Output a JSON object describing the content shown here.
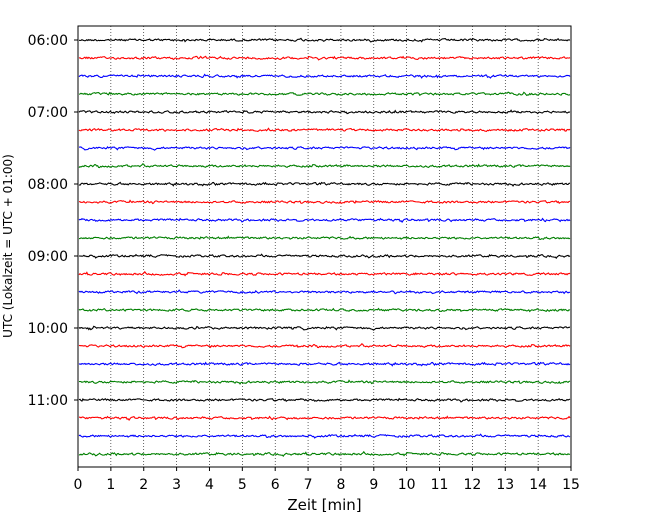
{
  "chart_data": {
    "type": "line",
    "title": "",
    "xlabel": "Zeit  [min]",
    "ylabel": "UTC (Lokalzeit = UTC + 01:00)",
    "xlim": [
      0,
      15
    ],
    "x_ticks": [
      "0",
      "1",
      "2",
      "3",
      "4",
      "5",
      "6",
      "7",
      "8",
      "9",
      "10",
      "11",
      "12",
      "13",
      "14",
      "15"
    ],
    "y_ticks": [
      "06:00",
      "07:00",
      "08:00",
      "09:00",
      "10:00",
      "11:00"
    ],
    "grid": "vertical dotted lines at each minute",
    "trace_interval_minutes": 15,
    "trace_start": "06:00",
    "trace_count": 24,
    "trace_colors": [
      "#000000",
      "#ff0000",
      "#0000ff",
      "#007f00"
    ],
    "series_description": "helicorder traces, one per 15 minutes from 06:00 to 11:45 UTC, low-amplitude noise"
  }
}
